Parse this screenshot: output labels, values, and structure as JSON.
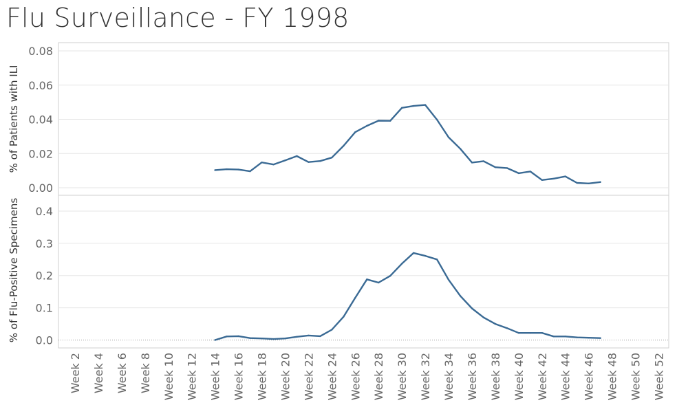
{
  "title": "Flu Surveillance - FY 1998",
  "colors": {
    "line": "#3a6a94",
    "grid": "#e6e6e6",
    "frame": "#cfcfcf",
    "text": "#666666",
    "zero_line": "#999999"
  },
  "chart_data": [
    {
      "type": "line",
      "ylabel": "% of Patients with ILI",
      "ylim": [
        0,
        0.08
      ],
      "yticks": [
        0.0,
        0.02,
        0.04,
        0.06,
        0.08
      ],
      "ytick_labels": [
        "0.00",
        "0.02",
        "0.04",
        "0.06",
        "0.08"
      ],
      "grid": true,
      "x_labels": [
        "Week 2",
        "Week 4",
        "Week 6",
        "Week 8",
        "Week 10",
        "Week 12",
        "Week 14",
        "Week 16",
        "Week 18",
        "Week 20",
        "Week 22",
        "Week 24",
        "Week 26",
        "Week 28",
        "Week 30",
        "Week 32",
        "Week 34",
        "Week 36",
        "Week 38",
        "Week 40",
        "Week 42",
        "Week 44",
        "Week 46",
        "Week 48",
        "Week 50",
        "Week 52"
      ],
      "x": [
        14,
        15,
        16,
        17,
        18,
        19,
        20,
        21,
        22,
        23,
        24,
        25,
        26,
        27,
        28,
        29,
        30,
        31,
        32,
        33,
        34,
        35,
        36,
        37,
        38,
        39,
        40,
        41,
        42,
        43,
        44,
        45,
        46,
        47
      ],
      "series": [
        {
          "values": [
            0.0103,
            0.0108,
            0.0106,
            0.0096,
            0.0148,
            0.0136,
            0.016,
            0.0185,
            0.015,
            0.0156,
            0.0176,
            0.0245,
            0.0325,
            0.0362,
            0.0392,
            0.0391,
            0.0467,
            0.0478,
            0.0484,
            0.0398,
            0.0295,
            0.0228,
            0.0147,
            0.0155,
            0.012,
            0.0115,
            0.0085,
            0.0095,
            0.0045,
            0.0053,
            0.0066,
            0.0028,
            0.0025,
            0.0033
          ]
        }
      ]
    },
    {
      "type": "line",
      "ylabel": "% of Flu-Positive Specimens",
      "ylim": [
        0,
        0.45
      ],
      "yticks": [
        0.0,
        0.1,
        0.2,
        0.3,
        0.4
      ],
      "ytick_labels": [
        "0.0",
        "0.1",
        "0.2",
        "0.3",
        "0.4"
      ],
      "grid": true,
      "x_labels": [
        "Week 2",
        "Week 4",
        "Week 6",
        "Week 8",
        "Week 10",
        "Week 12",
        "Week 14",
        "Week 16",
        "Week 18",
        "Week 20",
        "Week 22",
        "Week 24",
        "Week 26",
        "Week 28",
        "Week 30",
        "Week 32",
        "Week 34",
        "Week 36",
        "Week 38",
        "Week 40",
        "Week 42",
        "Week 44",
        "Week 46",
        "Week 48",
        "Week 50",
        "Week 52"
      ],
      "x": [
        14,
        15,
        16,
        17,
        18,
        19,
        20,
        21,
        22,
        23,
        24,
        25,
        26,
        27,
        28,
        29,
        30,
        31,
        32,
        33,
        34,
        35,
        36,
        37,
        38,
        39,
        40,
        41,
        42,
        43,
        44,
        45,
        46,
        47
      ],
      "series": [
        {
          "values": [
            0.0,
            0.011,
            0.012,
            0.006,
            0.005,
            0.003,
            0.005,
            0.01,
            0.014,
            0.012,
            0.032,
            0.072,
            0.131,
            0.188,
            0.178,
            0.199,
            0.237,
            0.27,
            0.261,
            0.25,
            0.187,
            0.137,
            0.098,
            0.07,
            0.05,
            0.037,
            0.022,
            0.022,
            0.022,
            0.011,
            0.011,
            0.008,
            0.007,
            0.006
          ]
        }
      ]
    }
  ]
}
